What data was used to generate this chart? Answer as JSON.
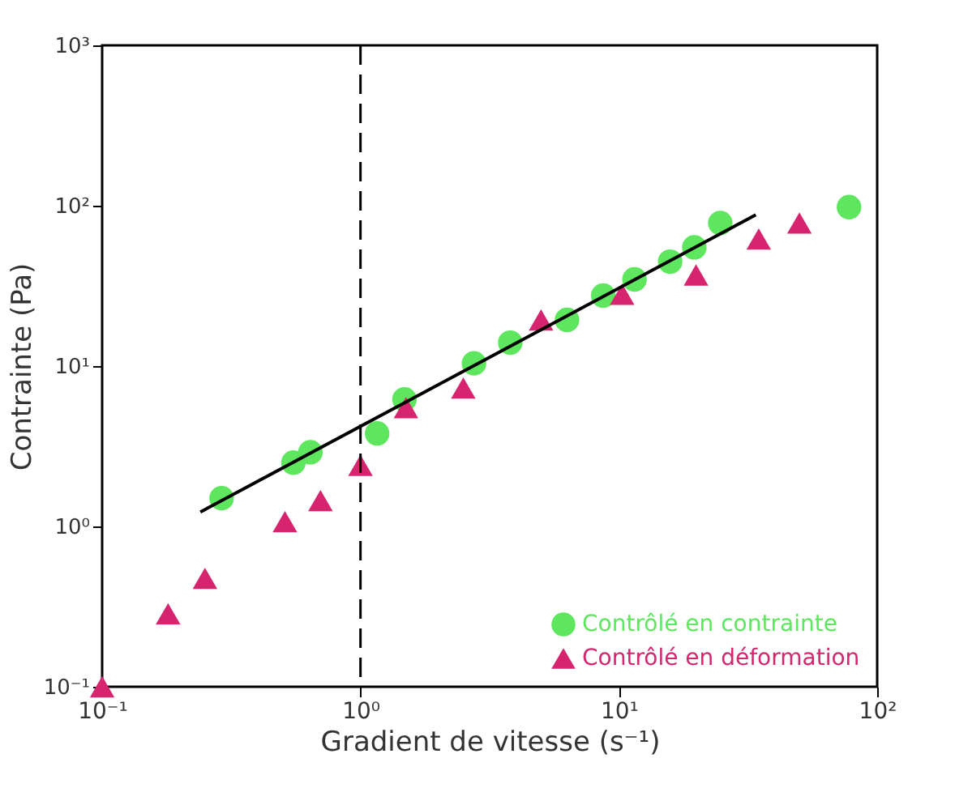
{
  "chart_data": {
    "type": "scatter",
    "xlabel": "Gradient de vitesse (s⁻¹)",
    "ylabel": "Contrainte (Pa)",
    "log": "xy",
    "grid": false,
    "legend": "bottom right",
    "xlim": [
      0.1,
      100
    ],
    "ylim": [
      0.1,
      1000
    ],
    "xticks": [
      {
        "value": 0.1,
        "label": "10⁻¹"
      },
      {
        "value": 1,
        "label": "10⁰"
      },
      {
        "value": 10,
        "label": "10¹"
      },
      {
        "value": 100,
        "label": "10²"
      }
    ],
    "yticks": [
      {
        "value": 0.1,
        "label": "10⁻¹"
      },
      {
        "value": 1,
        "label": "10⁰"
      },
      {
        "value": 10,
        "label": "10¹"
      },
      {
        "value": 100,
        "label": "10²"
      },
      {
        "value": 1000,
        "label": "10³"
      }
    ],
    "series": [
      {
        "name": "Contrôlé en contrainte",
        "marker": "circle",
        "color": "#5ee65e",
        "x": [
          0.29,
          0.55,
          0.64,
          1.16,
          1.48,
          2.75,
          3.8,
          6.3,
          8.7,
          11.5,
          15.8,
          19.6,
          24.7,
          77.8
        ],
        "values": [
          1.5,
          2.5,
          2.9,
          3.8,
          6.2,
          10.4,
          14,
          19.4,
          27.5,
          34.7,
          44.8,
          55,
          78,
          98
        ]
      },
      {
        "name": "Contrôlé en déformation",
        "marker": "triangle",
        "color": "#d6246e",
        "x": [
          0.1,
          0.18,
          0.25,
          0.51,
          0.7,
          1.0,
          1.5,
          2.5,
          5.0,
          10.3,
          19.9,
          34.8,
          50
        ],
        "values": [
          0.1,
          0.285,
          0.475,
          1.07,
          1.45,
          2.4,
          5.5,
          7.3,
          19.4,
          28,
          37,
          62,
          78
        ]
      },
      {
        "type": "line",
        "line_style": "solid",
        "color": "#000000",
        "x": [
          0.24,
          33.9
        ],
        "values": [
          1.23,
          87.7
        ]
      }
    ],
    "ref_lines": [
      {
        "axis": "x",
        "value": 1,
        "color": "#000000",
        "line_style": "dashed"
      }
    ]
  }
}
